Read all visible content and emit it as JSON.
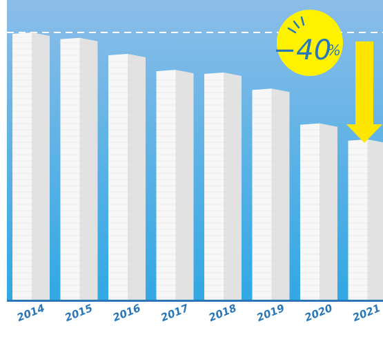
{
  "colors": {
    "sky_top": "#8cbde8",
    "sky_bottom": "#31a8e4",
    "axis": "#2a77b8",
    "label": "#2a77b8",
    "bar_front": "#f7f7f7",
    "bar_side": "#e2e2e2",
    "badge": "#fff200",
    "arrow": "#ffe600"
  },
  "badge": {
    "value": "−40",
    "unit": "%"
  },
  "icons": {
    "arrow": "down-arrow-icon",
    "burst": "burst-lines-icon"
  },
  "chart_data": {
    "type": "bar",
    "categories": [
      "2014",
      "2015",
      "2016",
      "2017",
      "2018",
      "2019",
      "2020",
      "2021"
    ],
    "values": [
      100,
      98,
      92,
      86,
      85,
      79,
      66,
      60
    ],
    "ylim": [
      0,
      100
    ],
    "reference_line": 100,
    "grid": false,
    "legend": "none"
  }
}
